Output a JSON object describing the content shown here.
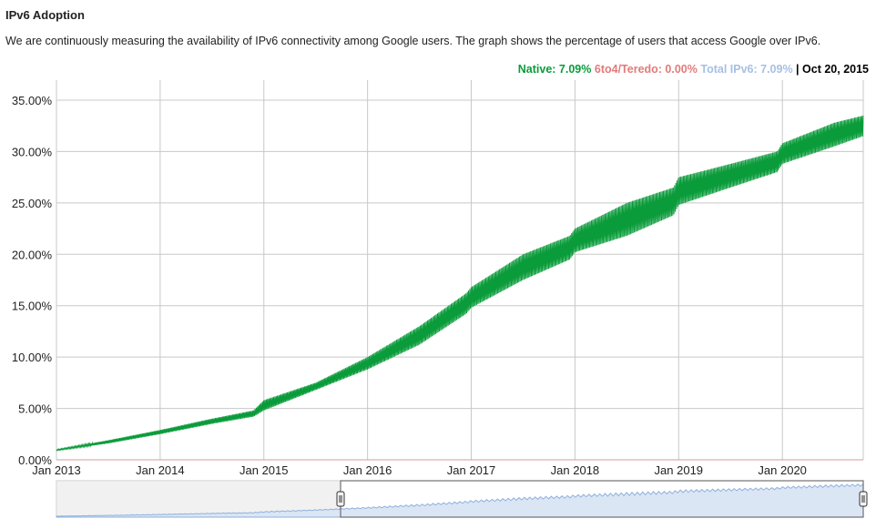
{
  "page": {
    "title": "IPv6 Adoption",
    "description": "We are continuously measuring the availability of IPv6 connectivity among Google users. The graph shows the percentage of users that access Google over IPv6."
  },
  "legend": {
    "native_label": "Native: 7.09%",
    "teredo_label": "6to4/Teredo: 0.00%",
    "total_label": "Total IPv6: 7.09%",
    "separator": " | ",
    "date_label": "Oct 20, 2015"
  },
  "colors": {
    "native": "#0a9b3a",
    "teredo": "#e17b7b",
    "total": "#a7bfe3",
    "grid": "#c8c8c8"
  },
  "chart_data": {
    "type": "line",
    "title": "",
    "xlabel": "",
    "ylabel": "",
    "xlim": [
      2013.0,
      2020.78
    ],
    "ylim": [
      0,
      35
    ],
    "grid": true,
    "y_ticks": [
      "0.00%",
      "5.00%",
      "10.00%",
      "15.00%",
      "20.00%",
      "25.00%",
      "30.00%",
      "35.00%"
    ],
    "x_ticks": [
      "Jan 2013",
      "Jan 2014",
      "Jan 2015",
      "Jan 2016",
      "Jan 2017",
      "Jan 2018",
      "Jan 2019",
      "Jan 2020"
    ],
    "series": [
      {
        "name": "Native",
        "x": [
          2013.0,
          2013.5,
          2014.0,
          2014.5,
          2014.9,
          2015.0,
          2015.5,
          2016.0,
          2016.5,
          2016.95,
          2017.0,
          2017.5,
          2017.95,
          2018.0,
          2018.5,
          2018.95,
          2019.0,
          2019.5,
          2019.95,
          2020.0,
          2020.5,
          2020.78
        ],
        "low": [
          0.9,
          1.6,
          2.5,
          3.5,
          4.2,
          4.8,
          6.8,
          8.8,
          11.2,
          14.2,
          14.8,
          17.5,
          19.5,
          20.2,
          21.8,
          23.8,
          24.8,
          26.5,
          28.0,
          28.8,
          30.5,
          31.5
        ],
        "high": [
          1.0,
          1.9,
          2.9,
          4.0,
          4.8,
          5.8,
          7.5,
          10.0,
          13.0,
          16.2,
          16.8,
          20.0,
          21.8,
          22.5,
          25.0,
          26.5,
          27.5,
          28.8,
          30.0,
          30.8,
          32.8,
          33.5
        ]
      },
      {
        "name": "6to4/Teredo",
        "x": [
          2013.0,
          2020.78
        ],
        "values": [
          0.0,
          0.0
        ]
      }
    ]
  }
}
